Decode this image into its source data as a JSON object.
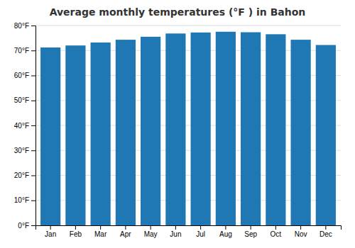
{
  "chart_data": {
    "type": "bar",
    "title": "Average monthly temperatures (°F ) in Bahon",
    "categories": [
      "Jan",
      "Feb",
      "Mar",
      "Apr",
      "May",
      "Jun",
      "Jul",
      "Aug",
      "Sep",
      "Oct",
      "Nov",
      "Dec"
    ],
    "values": [
      71.2,
      72.0,
      73.2,
      74.3,
      75.5,
      76.8,
      77.2,
      77.5,
      77.3,
      76.5,
      74.3,
      72.2
    ],
    "ylim": [
      0,
      80
    ],
    "yticks": [
      {
        "value": 0,
        "label": "0°F"
      },
      {
        "value": 10,
        "label": "10°F"
      },
      {
        "value": 20,
        "label": "20°F"
      },
      {
        "value": 30,
        "label": "30°F"
      },
      {
        "value": 40,
        "label": "40°F"
      },
      {
        "value": 50,
        "label": "50°F"
      },
      {
        "value": 60,
        "label": "60°F"
      },
      {
        "value": 70,
        "label": "70°F"
      },
      {
        "value": 80,
        "label": "80°F"
      }
    ],
    "grid": true
  }
}
